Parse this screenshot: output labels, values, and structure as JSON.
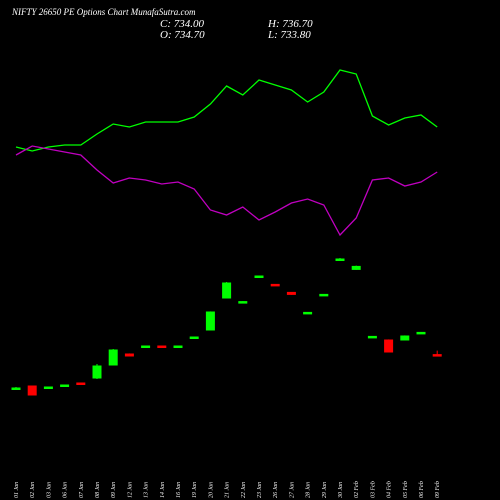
{
  "chart_data": {
    "type": "candlestick",
    "title": "NIFTY 26650 PE Options Chart MunafaSutra.com",
    "ohlc_labels": {
      "close": "C: 734.00",
      "high": "H: 736.70",
      "open": "O: 734.70",
      "low": "L: 733.80"
    },
    "categories": [
      "01 Jan",
      "02 Jan",
      "03 Jan",
      "06 Jan",
      "07 Jan",
      "08 Jan",
      "09 Jan",
      "12 Jan",
      "13 Jan",
      "14 Jan",
      "16 Jan",
      "19 Jan",
      "20 Jan",
      "21 Jan",
      "22 Jan",
      "23 Jan",
      "26 Jan",
      "27 Jan",
      "28 Jan",
      "29 Jan",
      "30 Jan",
      "02 Feb",
      "03 Feb",
      "04 Feb",
      "05 Feb",
      "06 Feb",
      "09 Feb"
    ],
    "open": [
      717.5,
      719,
      718,
      719,
      720.5,
      723,
      729.5,
      735,
      738.8,
      739,
      738.8,
      743.3,
      747,
      763,
      761,
      773.8,
      769.8,
      765.8,
      755.5,
      764.3,
      782.5,
      777.3,
      743.5,
      742,
      742,
      745.3,
      734.7
    ],
    "close": [
      718,
      714.5,
      718.5,
      719.5,
      720,
      729,
      737,
      734,
      739,
      738.8,
      739,
      743.5,
      756,
      770.5,
      761.2,
      774,
      769.3,
      764.8,
      755.8,
      764.8,
      782.5,
      778.8,
      743.8,
      736,
      744,
      745.8,
      734
    ],
    "high": [
      718.5,
      719.2,
      718.7,
      719.7,
      720.7,
      730,
      737.5,
      735.3,
      739.2,
      739.2,
      739.2,
      743.7,
      756.3,
      771,
      761.4,
      774.2,
      770,
      766,
      756,
      765,
      783,
      779.2,
      744,
      742.3,
      744.3,
      746,
      736.7
    ],
    "low": [
      717.3,
      714.3,
      717.8,
      718.8,
      719.8,
      722.5,
      729.3,
      733.8,
      738.6,
      738.6,
      738.6,
      743.1,
      746.8,
      762.8,
      760.8,
      773.6,
      769.1,
      764.6,
      755.3,
      764.1,
      782.3,
      777.1,
      743.3,
      735.8,
      741.8,
      745.1,
      733.8
    ],
    "ylim": [
      672,
      912
    ],
    "up_color": "#00ff00",
    "down_color": "#ff0000",
    "lines": [
      {
        "color": "#00ff00",
        "values": [
          353,
          349,
          353,
          355,
          355,
          366,
          376,
          373,
          378,
          378,
          378,
          383,
          396,
          414,
          405,
          420,
          415,
          410,
          398,
          408,
          430,
          426,
          384,
          375,
          382,
          385,
          373
        ]
      },
      {
        "color": "#c000c0",
        "values": [
          345,
          354,
          351,
          348,
          345,
          330,
          317,
          322,
          320,
          316,
          318,
          311,
          290,
          285,
          293,
          280,
          288,
          297,
          301,
          295,
          265,
          282,
          320,
          322,
          314,
          318,
          328
        ]
      }
    ],
    "y2lim": [
      0,
      500
    ]
  }
}
